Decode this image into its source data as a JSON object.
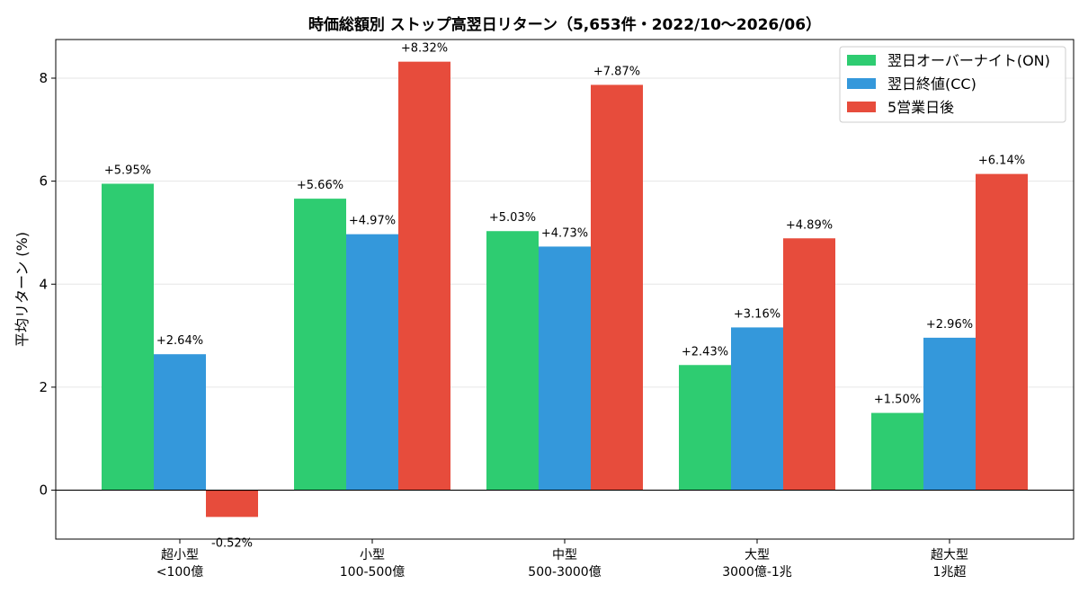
{
  "chart_data": {
    "type": "bar",
    "title": "時価総額別 ストップ高翌日リターン（5,653件・2022/10〜2026/06）",
    "xlabel": "",
    "ylabel": "平均リターン (%)",
    "ylim": [
      -0.95,
      8.75
    ],
    "yticks": [
      0,
      2,
      4,
      6,
      8
    ],
    "grid": true,
    "legend_position": "top-right",
    "categories": [
      [
        "超小型",
        "<100億"
      ],
      [
        "小型",
        "100-500億"
      ],
      [
        "中型",
        "500-3000億"
      ],
      [
        "大型",
        "3000億-1兆"
      ],
      [
        "超大型",
        "1兆超"
      ]
    ],
    "series": [
      {
        "name": "翌日オーバーナイト(ON)",
        "color": "#2ecc71",
        "values": [
          5.95,
          5.66,
          5.03,
          2.43,
          1.5
        ],
        "labels": [
          "+5.95%",
          "+5.66%",
          "+5.03%",
          "+2.43%",
          "+1.50%"
        ]
      },
      {
        "name": "翌日終値(CC)",
        "color": "#3498db",
        "values": [
          2.64,
          4.97,
          4.73,
          3.16,
          2.96
        ],
        "labels": [
          "+2.64%",
          "+4.97%",
          "+4.73%",
          "+3.16%",
          "+2.96%"
        ]
      },
      {
        "name": "5営業日後",
        "color": "#e74c3c",
        "values": [
          -0.52,
          8.32,
          7.87,
          4.89,
          6.14
        ],
        "labels": [
          "-0.52%",
          "+8.32%",
          "+7.87%",
          "+4.89%",
          "+6.14%"
        ]
      }
    ]
  }
}
